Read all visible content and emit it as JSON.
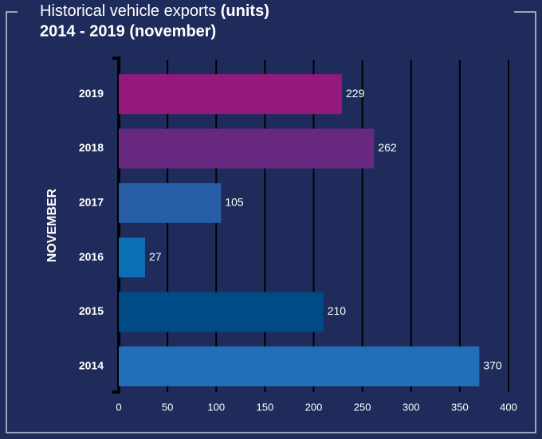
{
  "chart_data": {
    "type": "barh",
    "title": "Historical vehicle exports",
    "title_unit": "(units)",
    "subtitle": "2014 - 2019 (november)",
    "y_label": "NOVEMBER",
    "categories": [
      "2019",
      "2018",
      "2017",
      "2016",
      "2015",
      "2014"
    ],
    "values": [
      229,
      262,
      105,
      27,
      210,
      370
    ],
    "colors": [
      "#94197f",
      "#67287f",
      "#275da6",
      "#0a6fb4",
      "#004a86",
      "#2170b7"
    ],
    "xlim": [
      0,
      400
    ],
    "xticks": [
      0,
      50,
      100,
      150,
      200,
      250,
      300,
      350,
      400
    ],
    "grid": true
  }
}
